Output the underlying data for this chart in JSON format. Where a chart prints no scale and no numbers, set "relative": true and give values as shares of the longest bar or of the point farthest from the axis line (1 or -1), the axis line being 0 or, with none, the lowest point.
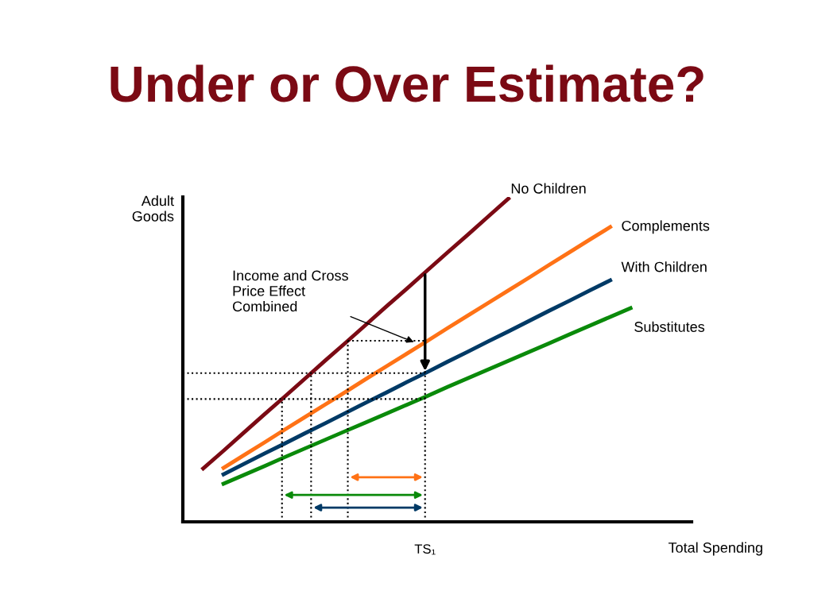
{
  "chart_data": {
    "type": "line",
    "title": "Under or Over Estimate?",
    "relative": true,
    "xlabel": "Total Spending",
    "ylabel": "Adult\nGoods",
    "categories": [
      null,
      null,
      null,
      null,
      null,
      null,
      null,
      null,
      null,
      null,
      null,
      null,
      null,
      null,
      null,
      null,
      null,
      null,
      null,
      null,
      null,
      null,
      null,
      null,
      null,
      null
    ],
    "legend": false,
    "marker": "none",
    "line_style": "solid",
    "series": [
      {
        "name": "No Children",
        "color": "#7b0a14",
        "values": [
          null,
          0.165,
          0.22,
          0.276,
          0.332,
          0.387,
          0.443,
          0.499,
          0.554,
          0.61,
          0.666,
          0.721,
          0.777,
          0.833,
          0.888,
          0.944,
          1.0,
          null,
          null,
          null,
          null,
          null,
          null,
          null,
          null,
          null
        ]
      },
      {
        "name": "Complements",
        "color": "#ff7216",
        "values": [
          null,
          null,
          0.167,
          0.206,
          0.245,
          0.285,
          0.324,
          0.363,
          0.402,
          0.442,
          0.481,
          0.52,
          0.559,
          0.599,
          0.638,
          0.677,
          0.716,
          0.755,
          0.795,
          0.834,
          0.873,
          0.912,
          null,
          null,
          null,
          null
        ]
      },
      {
        "name": "With Children",
        "color": "#003a66",
        "values": [
          null,
          null,
          0.147,
          0.179,
          0.211,
          0.242,
          0.274,
          0.305,
          0.337,
          0.369,
          0.4,
          0.432,
          0.463,
          0.495,
          0.526,
          0.558,
          0.589,
          0.621,
          0.653,
          0.684,
          0.716,
          0.747,
          null,
          null,
          null,
          null
        ]
      },
      {
        "name": "Substitutes",
        "color": "#0a8a0a",
        "values": [
          null,
          null,
          0.118,
          0.145,
          0.172,
          0.2,
          0.227,
          0.254,
          0.281,
          0.308,
          0.335,
          0.362,
          0.389,
          0.417,
          0.444,
          0.471,
          0.498,
          0.525,
          0.552,
          0.58,
          0.607,
          0.634,
          0.661,
          null,
          null,
          null
        ]
      }
    ],
    "ref_lines": [
      {
        "axis": "y",
        "value": 0.46,
        "line_style": "dotted",
        "color": "#000000"
      },
      {
        "axis": "y",
        "value": 0.38,
        "line_style": "dotted",
        "color": "#000000"
      },
      {
        "axis": "y",
        "value": 0.56,
        "line_style": "dotted",
        "color": "#000000"
      }
    ],
    "annotations": [
      "Income and Cross\nPrice Effect\nCombined",
      "TS₁"
    ]
  }
}
